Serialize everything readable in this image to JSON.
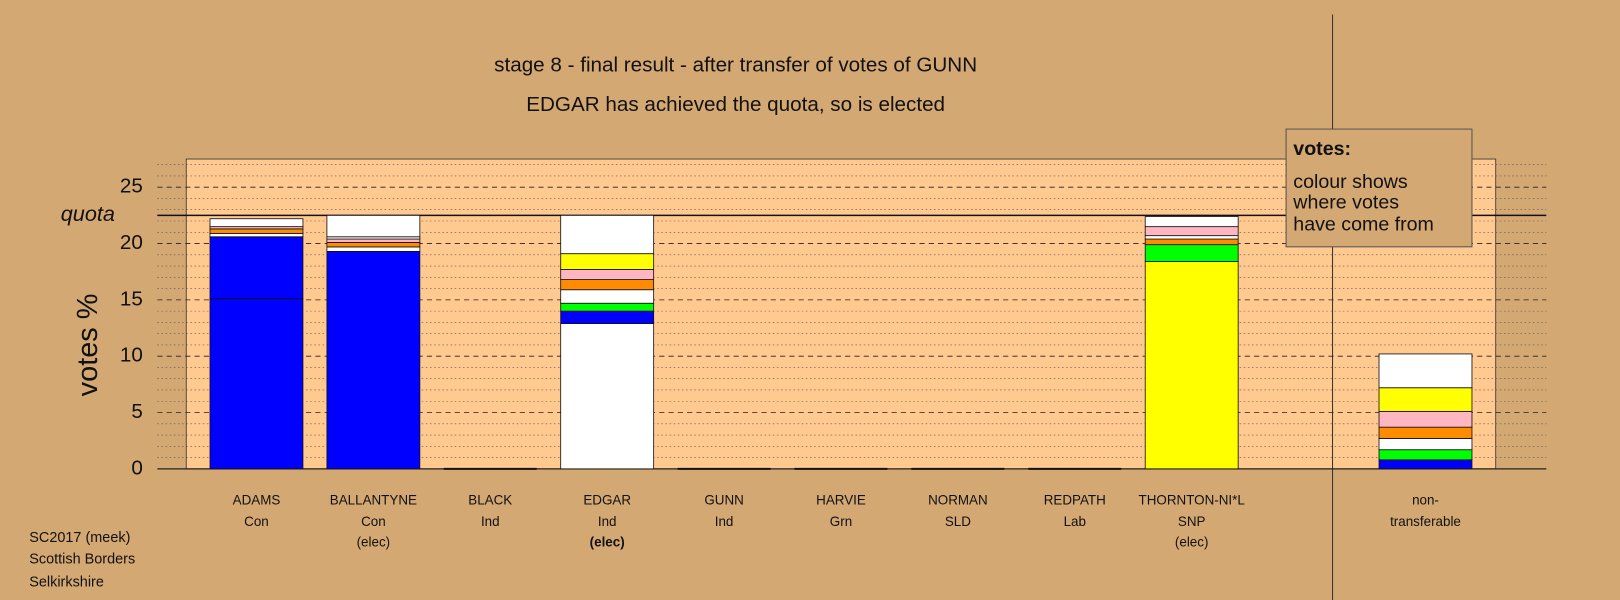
{
  "chart_data": {
    "type": "stacked-bar",
    "title": "stage 8 - final result - after transfer of votes of GUNN",
    "subtitle": "EDGAR has achieved the quota, so is elected",
    "ylabel": "votes %",
    "ylim": [
      0,
      27.5
    ],
    "yticks": [
      0,
      5,
      10,
      15,
      20,
      25
    ],
    "yminorticks": [
      1,
      2,
      3,
      4,
      6,
      7,
      8,
      9,
      11,
      12,
      13,
      14,
      16,
      17,
      18,
      19,
      21,
      22,
      23,
      24,
      26,
      27
    ],
    "quota": {
      "label": "quota",
      "value": 22.5
    },
    "legend": {
      "title": "votes:",
      "lines": [
        "colour shows",
        "where votes",
        "have come from"
      ]
    },
    "notes": [
      "SC2017 (meek)",
      "Scottish Borders",
      "Selkirkshire"
    ],
    "bars": [
      {
        "name": "ADAMS",
        "party": "Con",
        "segments": [
          {
            "color": "#0000ff",
            "value": 15.1
          },
          {
            "color": "#0000ff",
            "value": 5.5
          },
          {
            "color": "#ffffff",
            "value": 0.3
          },
          {
            "color": "#ff8c00",
            "value": 0.4
          },
          {
            "color": "#ffb6c1",
            "value": 0.2
          },
          {
            "color": "#ffffff",
            "value": 0.7
          }
        ]
      },
      {
        "name": "BALLANTYNE",
        "party": "Con",
        "status": "(elec)",
        "segments": [
          {
            "color": "#0000ff",
            "value": 19.3
          },
          {
            "color": "#ffffff",
            "value": 0.4
          },
          {
            "color": "#ff8c00",
            "value": 0.4
          },
          {
            "color": "#ffb6c1",
            "value": 0.3
          },
          {
            "color": "#ffffff",
            "value": 0.2
          },
          {
            "color": "#ffffff",
            "value": 1.9
          }
        ]
      },
      {
        "name": "BLACK",
        "party": "Ind",
        "segments": [
          {
            "value": 0
          }
        ]
      },
      {
        "name": "EDGAR",
        "party": "Ind",
        "status": "(elec)",
        "status_bold": true,
        "segments": [
          {
            "color": "#ffffff",
            "value": 12.9
          },
          {
            "color": "#0000ff",
            "value": 1.1
          },
          {
            "color": "#00ff00",
            "value": 0.7
          },
          {
            "color": "#ffffff",
            "value": 1.2
          },
          {
            "color": "#ff8c00",
            "value": 0.9
          },
          {
            "color": "#ffb6c1",
            "value": 0.9
          },
          {
            "color": "#ffff00",
            "value": 1.4
          },
          {
            "color": "#ffffff",
            "value": 3.4
          }
        ]
      },
      {
        "name": "GUNN",
        "party": "Ind",
        "segments": [
          {
            "value": 0
          }
        ]
      },
      {
        "name": "HARVIE",
        "party": "Grn",
        "segments": [
          {
            "value": 0
          }
        ]
      },
      {
        "name": "NORMAN",
        "party": "SLD",
        "segments": [
          {
            "value": 0
          }
        ]
      },
      {
        "name": "REDPATH",
        "party": "Lab",
        "segments": [
          {
            "value": 0
          }
        ]
      },
      {
        "name": "THORNTON-NI*L",
        "party": "SNP",
        "status": "(elec)",
        "segments": [
          {
            "color": "#ffff00",
            "value": 18.4
          },
          {
            "color": "#00ff00",
            "value": 1.5
          },
          {
            "color": "#ff8c00",
            "value": 0.5
          },
          {
            "color": "#ffffff",
            "value": 0.3
          },
          {
            "color": "#ffb6c1",
            "value": 0.8
          },
          {
            "color": "#ffffff",
            "value": 0.9
          }
        ]
      }
    ],
    "nontransferable": {
      "label": [
        "non-",
        "transferable"
      ],
      "segments": [
        {
          "color": "#0000ff",
          "value": 0.8
        },
        {
          "color": "#00ff00",
          "value": 0.9
        },
        {
          "color": "#ffffff",
          "value": 1.0
        },
        {
          "color": "#ff8c00",
          "value": 1.0
        },
        {
          "color": "#ffb6c1",
          "value": 1.4
        },
        {
          "color": "#ffff00",
          "value": 2.1
        },
        {
          "color": "#ffffff",
          "value": 3.0
        }
      ]
    }
  }
}
